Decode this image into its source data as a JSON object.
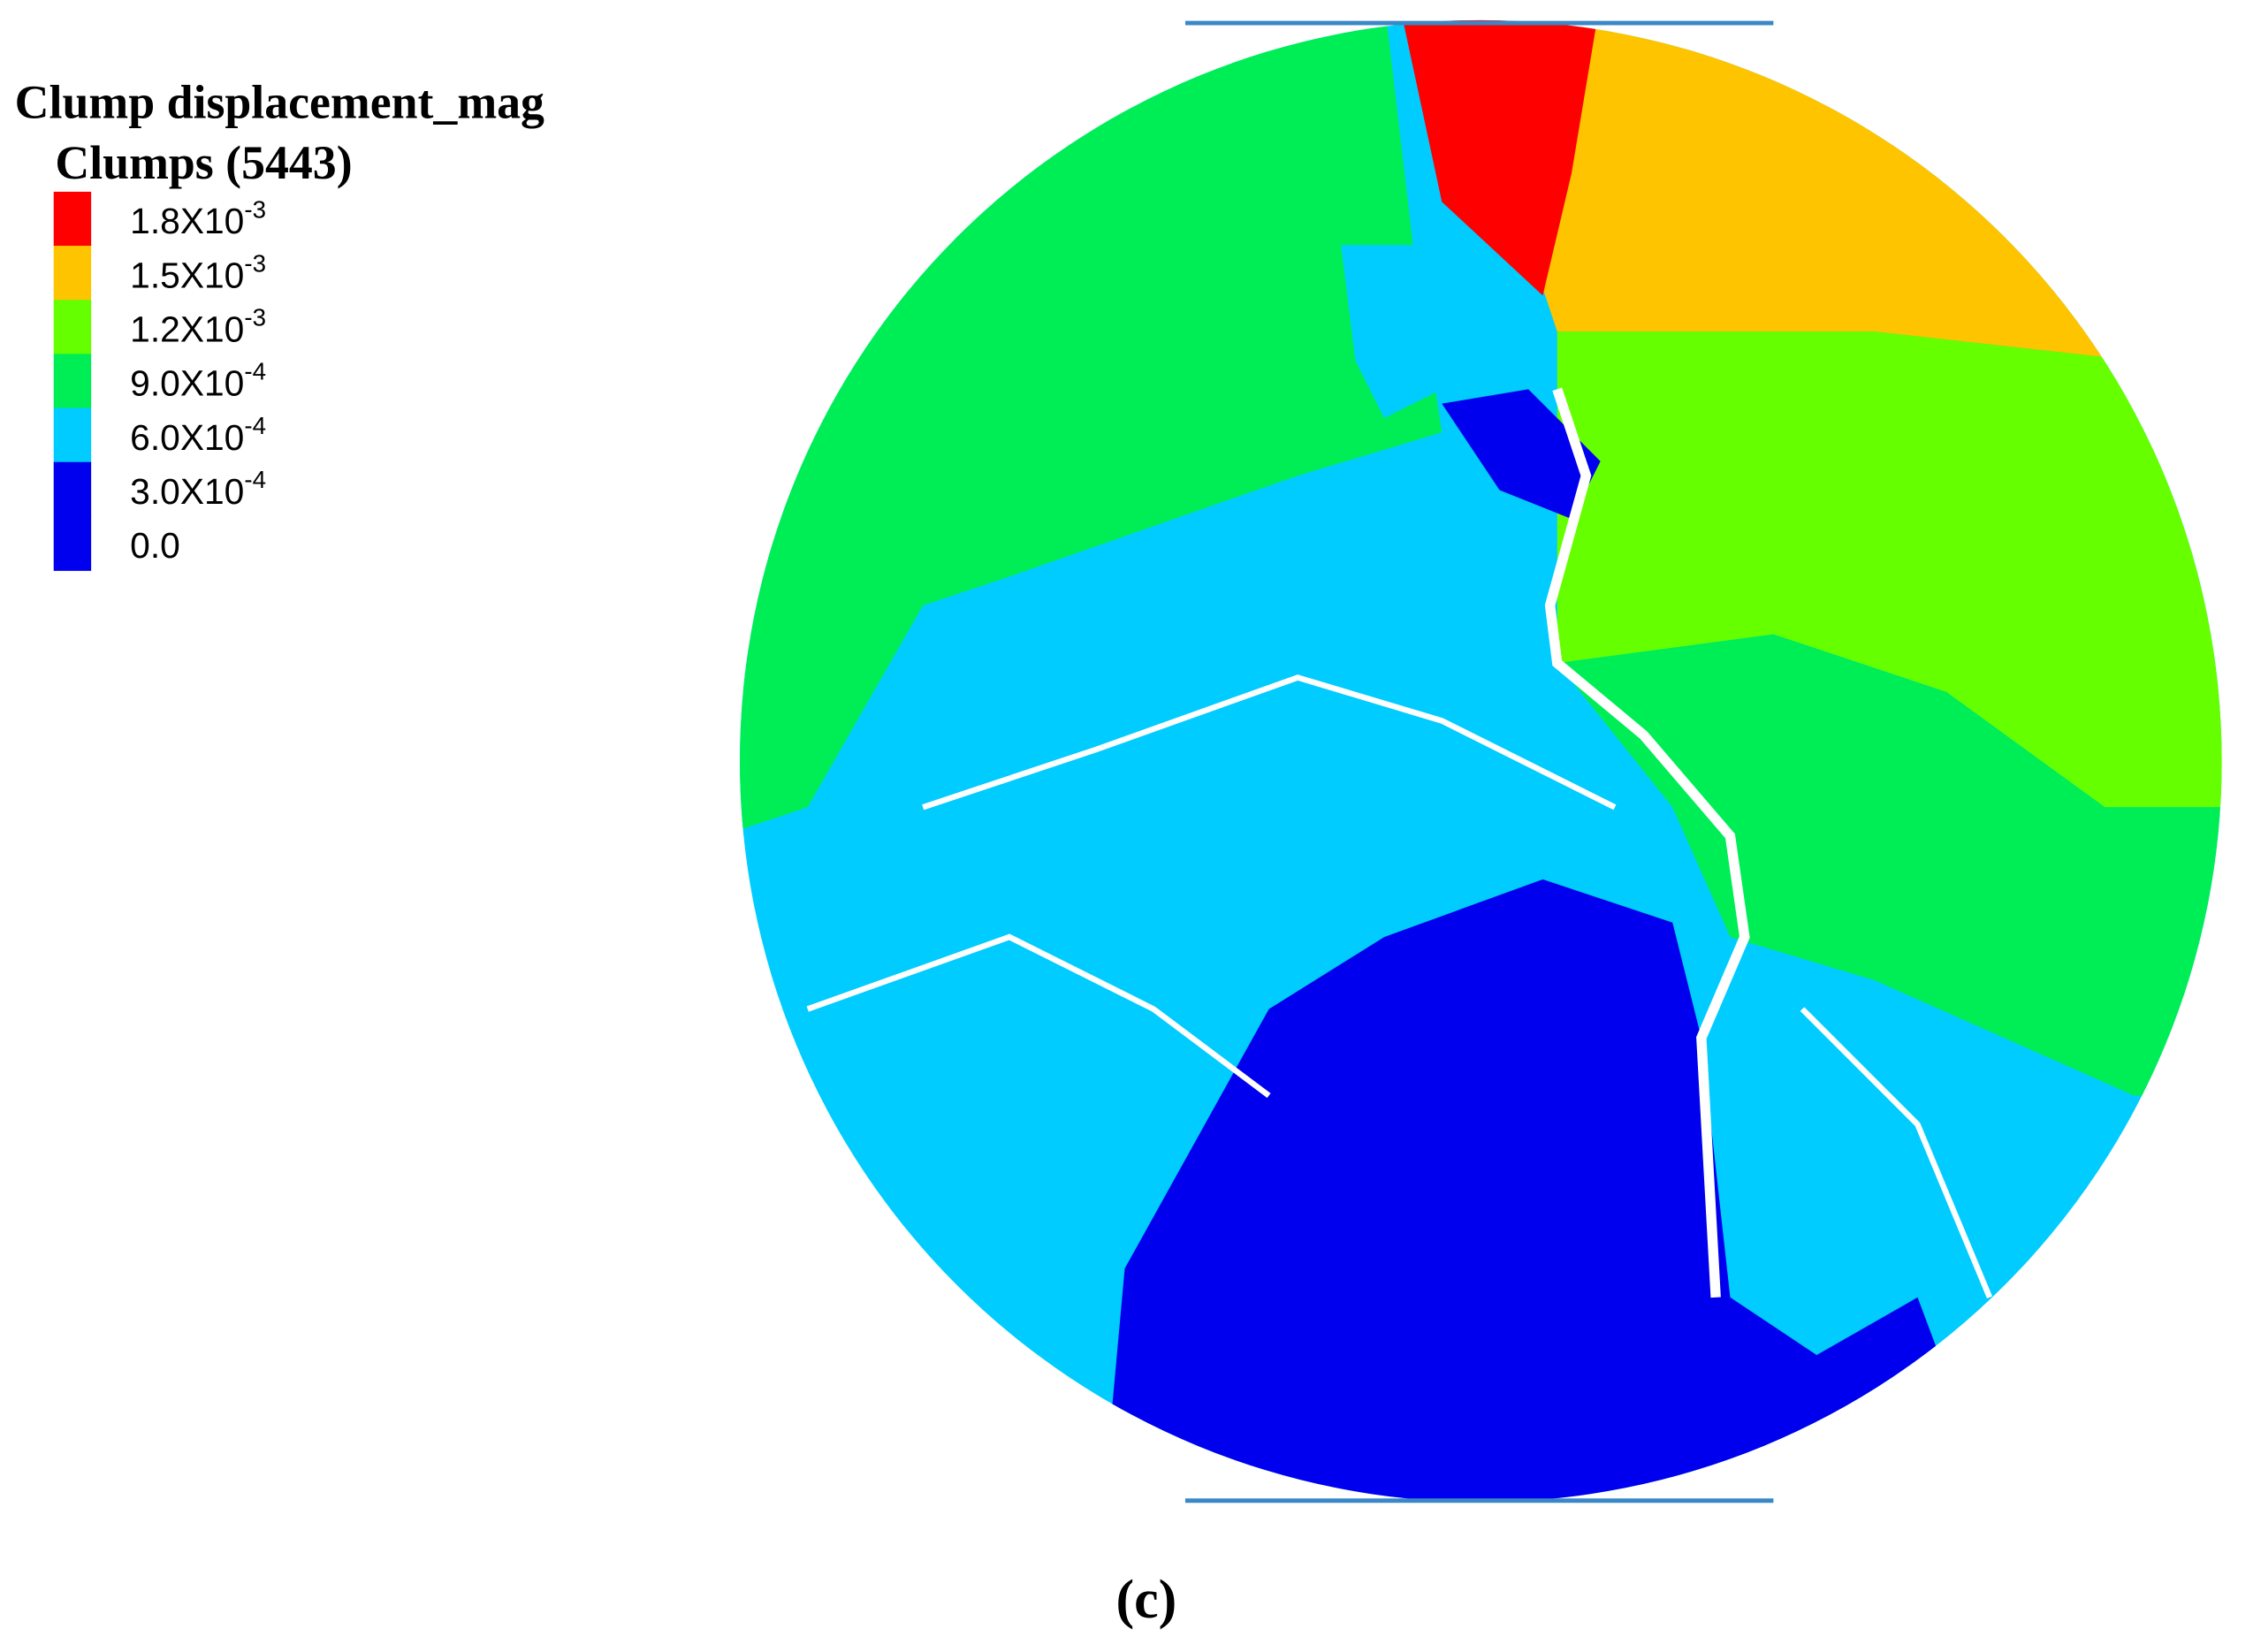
{
  "legend": {
    "title": "Clump displacement_mag",
    "subtitle": "Clumps (5443)",
    "items": [
      {
        "label": "1.8X10",
        "exponent": "-3",
        "color": "#ff0000"
      },
      {
        "label": "1.5X10",
        "exponent": "-3",
        "color": "#ffc400"
      },
      {
        "label": "1.2X10",
        "exponent": "-3",
        "color": "#66ff00"
      },
      {
        "label": "9.0X10",
        "exponent": "-4",
        "color": "#00ee55"
      },
      {
        "label": "6.0X10",
        "exponent": "-4",
        "color": "#00ccff"
      },
      {
        "label": "3.0X10",
        "exponent": "-4",
        "color": "#0000ee"
      },
      {
        "label": "0.0",
        "color": "#0000ee"
      }
    ]
  },
  "caption": "(c)"
}
